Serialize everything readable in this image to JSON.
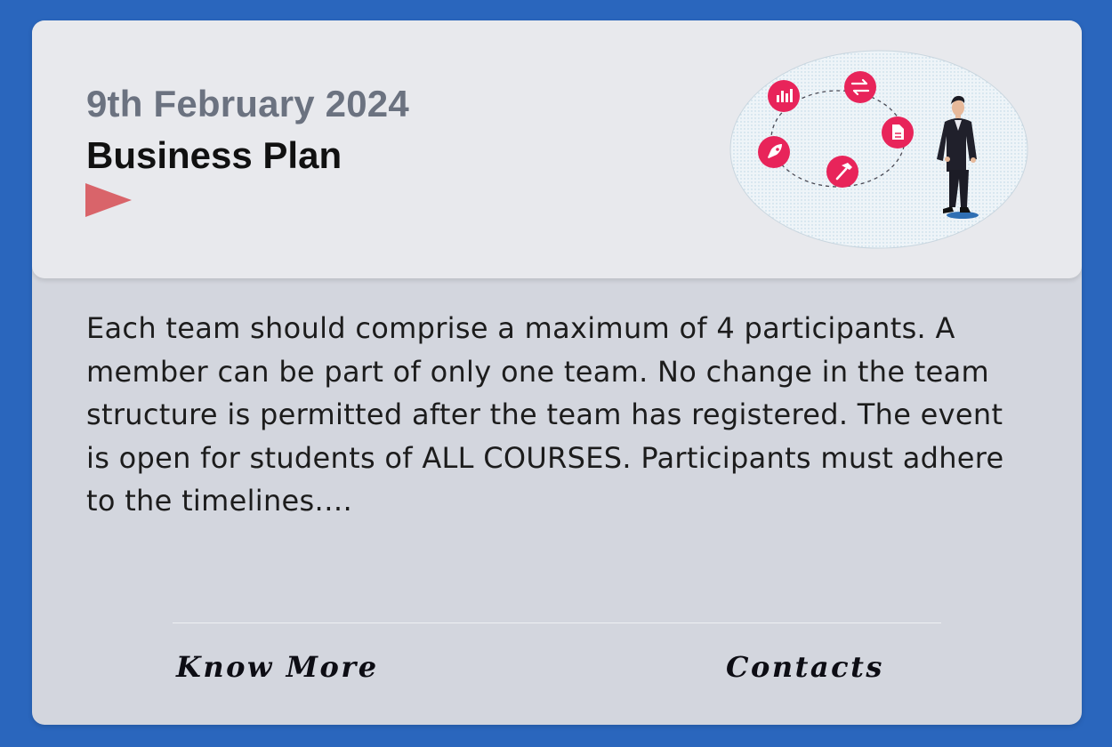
{
  "event": {
    "date": "9th February 2024",
    "title": "Business Plan",
    "description": "Each team should comprise a maximum of 4 participants. A member can be part of only one team. No change in the team structure is permitted after the team has registered. The event is open for students of ALL COURSES. Participants must adhere to the timelines.…"
  },
  "actions": {
    "know_more": "Know More",
    "contacts": "Contacts"
  },
  "icons": {
    "play": "play-triangle-icon",
    "chart": "bar-chart-icon",
    "refresh": "exchange-arrows-icon",
    "document": "document-icon",
    "rocket": "rocket-icon",
    "hammer": "hammer-icon"
  },
  "colors": {
    "background": "#2a66bd",
    "header": "#e8e9ed",
    "body": "#d3d6de",
    "accent": "#e8245a",
    "play": "#d9646a",
    "date": "#6b7280"
  }
}
